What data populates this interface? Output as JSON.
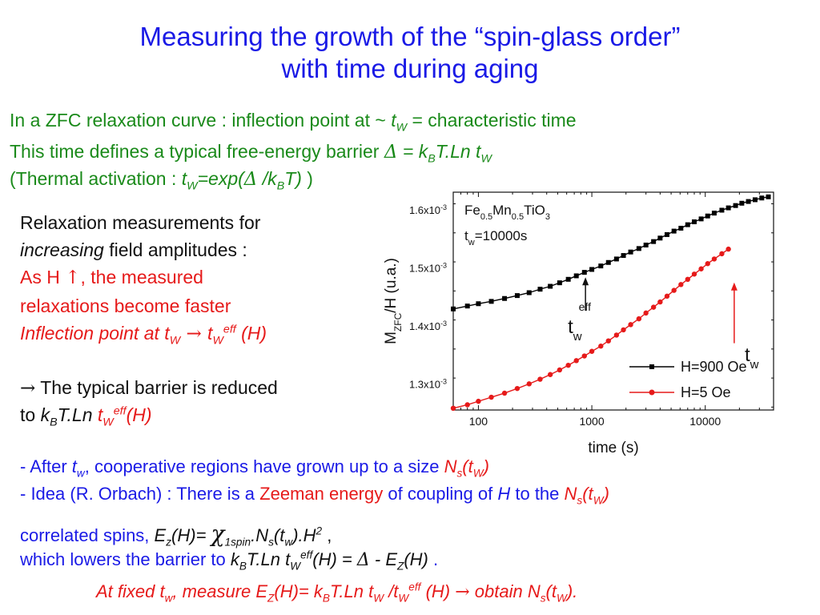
{
  "title": {
    "line1": "Measuring the growth of the “spin-glass order”",
    "line2": "with time during aging"
  },
  "intro": {
    "l1_a": "In a ZFC relaxation curve : inflection point at ~ ",
    "l1_tw": "t",
    "l1_w": "W",
    "l1_b": "  = characteristic time",
    "l2_a": "This time defines a typical free-energy barrier ",
    "l2_delta": "Δ",
    "l2_b": " = k",
    "l2_B": "B",
    "l2_c": "T.Ln t",
    "l2_w": "W",
    "l3_a": "(Thermal activation : ",
    "l3_t": "t",
    "l3_w": "W",
    "l3_b": "=exp(",
    "l3_delta": "Δ",
    "l3_c": " /k",
    "l3_B": "B",
    "l3_d": "T)",
    "l3_e": " )"
  },
  "left": {
    "p1": "Relaxation measurements for",
    "p2_it": "increasing",
    "p2_rest": " field amplitudes :",
    "p3_a": "As H ",
    "p3_arrow": "↑",
    "p3_b": ", the measured",
    "p4": "relaxations become faster",
    "p5_a": "Inflection point at t",
    "p5_w": "W",
    "p5_arrow": " → ",
    "p5_t": "t",
    "p5_w2": "W",
    "p5_eff": "eff",
    "p5_b": " (H)",
    "p6_arrow": "→",
    "p6": " The typical barrier is reduced",
    "p7_a": "to ",
    "p7_k": "k",
    "p7_B": "B",
    "p7_b": "T.Ln ",
    "p7_t": "t",
    "p7_w": "W",
    "p7_eff": "eff",
    "p7_c": "(H)"
  },
  "bottom": {
    "b1_a": "- After ",
    "b1_t": "t",
    "b1_w": "w",
    "b1_b": ", cooperative regions have grown up to a size ",
    "b1_N": "N",
    "b1_s": "s",
    "b1_c": "(t",
    "b1_W": "W",
    "b1_d": ")",
    "b2_a": "- Idea (R. Orbach) : ",
    "b2_b": "There is a ",
    "b2_c": "Zeeman energy",
    "b2_d": " of coupling of ",
    "b2_H": "H",
    "b2_e": " to the ",
    "b2_N": "N",
    "b2_s": "s",
    "b2_f": "(t",
    "b2_W": "W",
    "b2_g": ")",
    "b3_a": "correlated spins,  ",
    "b3_E": "E",
    "b3_z": "z",
    "b3_b": "(H)= ",
    "b3_chi": "χ",
    "b3_1spin": "1spin",
    "b3_c": ".N",
    "b3_s": "s",
    "b3_d": "(t",
    "b3_w": "w",
    "b3_e": ").H",
    "b3_2": "2",
    "b3_f": "  ,",
    "b4_a": "which lowers the barrier to ",
    "b4_k": "k",
    "b4_B": "B",
    "b4_b": "T.Ln t",
    "b4_W": "W",
    "b4_eff": "eff",
    "b4_c": "(H) = ",
    "b4_delta": "Δ",
    "b4_d": " - E",
    "b4_Z": "Z",
    "b4_e": "(H)",
    "b4_f": "  .",
    "b5_a": "At fixed t",
    "b5_w": "w",
    "b5_b": ", measure E",
    "b5_Z": "Z",
    "b5_c": "(H)= k",
    "b5_B": "B",
    "b5_d": "T.Ln t",
    "b5_W": "W",
    "b5_e": " /t",
    "b5_W2": "W",
    "b5_eff": "eff",
    "b5_f": " (H) ",
    "b5_arrow": "→",
    "b5_g": " obtain N",
    "b5_s": "s",
    "b5_h": "(t",
    "b5_W3": "W",
    "b5_i": ")."
  },
  "colors": {
    "title": "#1a1ae6",
    "intro": "#1a8a1a",
    "highlight": "#e61a1a",
    "series_900": "#000000",
    "series_5": "#e61a1a"
  },
  "chart_data": {
    "type": "scatter",
    "xscale": "log",
    "xlim": [
      60,
      40000
    ],
    "ylim": [
      1.255,
      1.63
    ],
    "xticks": [
      100,
      1000,
      10000
    ],
    "xtick_labels": [
      "100",
      "1000",
      "10000"
    ],
    "yticks": [
      1.3,
      1.4,
      1.5,
      1.6
    ],
    "ytick_labels": [
      {
        "mant": "1.3x10",
        "exp": "-3"
      },
      {
        "mant": "1.4x10",
        "exp": "-3"
      },
      {
        "mant": "1.5x10",
        "exp": "-3"
      },
      {
        "mant": "1.6x10",
        "exp": "-3"
      }
    ],
    "xlabel": "time (s)",
    "ylabel": {
      "a": "M",
      "sub": "ZFC",
      "b": "/H (u.a.)"
    },
    "sample": {
      "a": "Fe",
      "s1": "0.5",
      "b": "Mn",
      "s2": "0.5",
      "c": "TiO",
      "s3": "3"
    },
    "tw_label": {
      "a": "t",
      "w": "w",
      "b": "=10000s"
    },
    "annotations": [
      {
        "text": "t",
        "sub": "w",
        "sup": "eff",
        "x": 700,
        "y": 1.412
      },
      {
        "text": "t",
        "sub": "w",
        "x": 23000,
        "y": 1.35
      }
    ],
    "legend_position": "bottom-right",
    "series": [
      {
        "name": "H=900 Oe",
        "marker": "square",
        "points": [
          [
            60,
            1.429
          ],
          [
            80,
            1.434
          ],
          [
            100,
            1.438
          ],
          [
            130,
            1.442
          ],
          [
            170,
            1.447
          ],
          [
            220,
            1.452
          ],
          [
            280,
            1.457
          ],
          [
            350,
            1.463
          ],
          [
            430,
            1.468
          ],
          [
            520,
            1.474
          ],
          [
            620,
            1.48
          ],
          [
            730,
            1.486
          ],
          [
            860,
            1.492
          ],
          [
            1000,
            1.497
          ],
          [
            1200,
            1.503
          ],
          [
            1400,
            1.509
          ],
          [
            1650,
            1.515
          ],
          [
            1900,
            1.521
          ],
          [
            2200,
            1.527
          ],
          [
            2600,
            1.533
          ],
          [
            3000,
            1.539
          ],
          [
            3500,
            1.545
          ],
          [
            4000,
            1.551
          ],
          [
            4600,
            1.557
          ],
          [
            5300,
            1.563
          ],
          [
            6100,
            1.568
          ],
          [
            7000,
            1.574
          ],
          [
            8000,
            1.579
          ],
          [
            9200,
            1.584
          ],
          [
            10500,
            1.589
          ],
          [
            12000,
            1.594
          ],
          [
            14000,
            1.599
          ],
          [
            16000,
            1.603
          ],
          [
            18500,
            1.607
          ],
          [
            21000,
            1.611
          ],
          [
            24000,
            1.614
          ],
          [
            27500,
            1.617
          ],
          [
            31500,
            1.62
          ],
          [
            36000,
            1.622
          ]
        ]
      },
      {
        "name": "H=5 Oe",
        "marker": "circle",
        "points": [
          [
            60,
            1.258
          ],
          [
            80,
            1.264
          ],
          [
            100,
            1.27
          ],
          [
            130,
            1.277
          ],
          [
            170,
            1.284
          ],
          [
            220,
            1.292
          ],
          [
            280,
            1.3
          ],
          [
            350,
            1.308
          ],
          [
            430,
            1.316
          ],
          [
            520,
            1.324
          ],
          [
            620,
            1.332
          ],
          [
            730,
            1.34
          ],
          [
            860,
            1.348
          ],
          [
            1000,
            1.356
          ],
          [
            1200,
            1.365
          ],
          [
            1400,
            1.374
          ],
          [
            1650,
            1.384
          ],
          [
            1900,
            1.393
          ],
          [
            2200,
            1.402
          ],
          [
            2600,
            1.412
          ],
          [
            3000,
            1.422
          ],
          [
            3500,
            1.432
          ],
          [
            4000,
            1.441
          ],
          [
            4600,
            1.451
          ],
          [
            5300,
            1.461
          ],
          [
            6100,
            1.471
          ],
          [
            7000,
            1.48
          ],
          [
            8000,
            1.489
          ],
          [
            9200,
            1.498
          ],
          [
            10500,
            1.507
          ],
          [
            12000,
            1.515
          ],
          [
            14000,
            1.524
          ],
          [
            16000,
            1.532
          ]
        ]
      }
    ]
  }
}
